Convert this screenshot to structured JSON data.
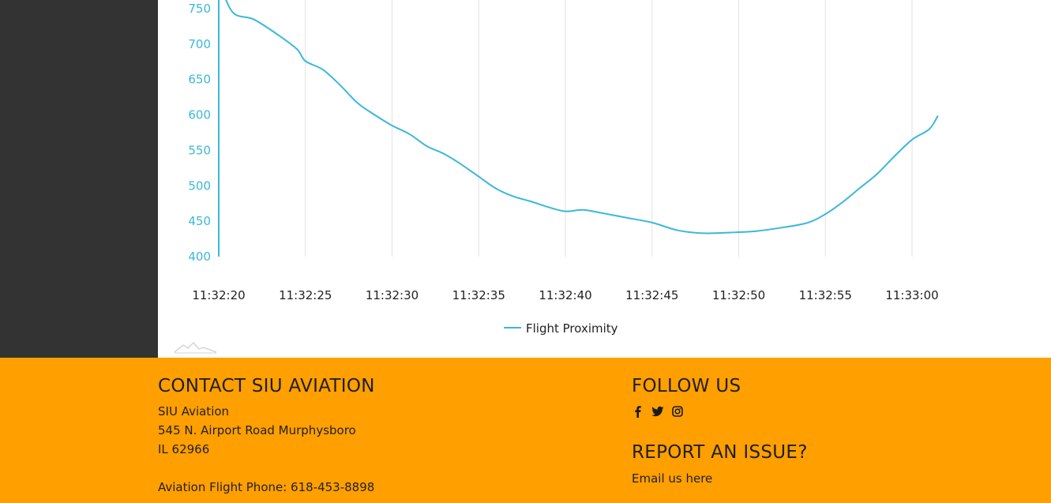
{
  "chart_data": {
    "type": "line",
    "x": [
      "11:32:20",
      "11:32:25",
      "11:32:30",
      "11:32:35",
      "11:32:40",
      "11:32:45",
      "11:32:50",
      "11:32:55",
      "11:33:00"
    ],
    "yticks": [
      400,
      450,
      500,
      550,
      600,
      650,
      700,
      750
    ],
    "ylim": [
      400,
      770
    ],
    "grid": "vertical",
    "legend_placement": "bottom",
    "series": [
      {
        "name": "Flight Proximity",
        "color": "#3bb8d8",
        "points": [
          {
            "t": 20.0,
            "y": 790
          },
          {
            "t": 20.8,
            "y": 745
          },
          {
            "t": 22.0,
            "y": 735
          },
          {
            "t": 23.3,
            "y": 715
          },
          {
            "t": 24.5,
            "y": 693
          },
          {
            "t": 25.0,
            "y": 676
          },
          {
            "t": 26.0,
            "y": 664
          },
          {
            "t": 27.0,
            "y": 642
          },
          {
            "t": 28.0,
            "y": 617
          },
          {
            "t": 29.0,
            "y": 600
          },
          {
            "t": 30.0,
            "y": 585
          },
          {
            "t": 31.0,
            "y": 573
          },
          {
            "t": 32.0,
            "y": 556
          },
          {
            "t": 33.0,
            "y": 545
          },
          {
            "t": 34.0,
            "y": 530
          },
          {
            "t": 35.0,
            "y": 513
          },
          {
            "t": 36.0,
            "y": 496
          },
          {
            "t": 37.0,
            "y": 485
          },
          {
            "t": 38.0,
            "y": 478
          },
          {
            "t": 39.0,
            "y": 470
          },
          {
            "t": 40.0,
            "y": 464
          },
          {
            "t": 41.0,
            "y": 466
          },
          {
            "t": 42.0,
            "y": 462
          },
          {
            "t": 43.5,
            "y": 455
          },
          {
            "t": 45.0,
            "y": 448
          },
          {
            "t": 46.5,
            "y": 437
          },
          {
            "t": 48.0,
            "y": 433
          },
          {
            "t": 49.5,
            "y": 434
          },
          {
            "t": 51.0,
            "y": 436
          },
          {
            "t": 52.5,
            "y": 441
          },
          {
            "t": 54.0,
            "y": 448
          },
          {
            "t": 55.0,
            "y": 460
          },
          {
            "t": 56.0,
            "y": 477
          },
          {
            "t": 57.0,
            "y": 497
          },
          {
            "t": 58.0,
            "y": 517
          },
          {
            "t": 59.0,
            "y": 542
          },
          {
            "t": 60.0,
            "y": 565
          },
          {
            "t": 61.0,
            "y": 580
          },
          {
            "t": 61.5,
            "y": 599
          }
        ]
      }
    ]
  },
  "footer": {
    "contact_heading": "CONTACT SIU AVIATION",
    "org_name": "SIU Aviation",
    "address_line1": "545 N. Airport Road Murphysboro",
    "address_line2": "IL 62966",
    "phone": "Aviation Flight Phone: 618-453-8898",
    "follow_heading": "FOLLOW US",
    "social_icons": [
      "facebook-icon",
      "twitter-icon",
      "instagram-icon"
    ],
    "report_heading": "REPORT AN ISSUE?",
    "email_prefix": "Email us ",
    "email_link": "here"
  },
  "colors": {
    "sidebar": "#333333",
    "footer": "#ff9f00",
    "series": "#3bb8d8"
  }
}
